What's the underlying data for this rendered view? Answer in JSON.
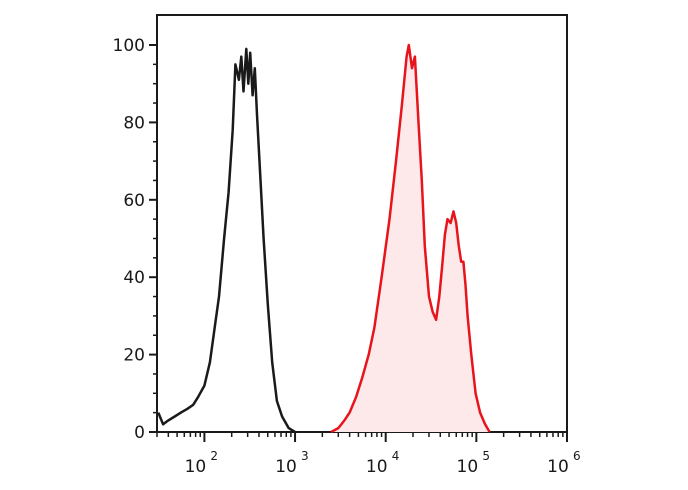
{
  "chart_data": {
    "type": "area",
    "title": "",
    "xlabel": "",
    "ylabel": "",
    "x_scale": "log",
    "xlim": [
      30,
      1000000
    ],
    "ylim": [
      0,
      100
    ],
    "grid": false,
    "y_ticks": [
      {
        "value": 0,
        "label": "0"
      },
      {
        "value": 20,
        "label": "20"
      },
      {
        "value": 40,
        "label": "40"
      },
      {
        "value": 60,
        "label": "60"
      },
      {
        "value": 80,
        "label": "80"
      },
      {
        "value": 100,
        "label": "100"
      }
    ],
    "x_ticks": [
      {
        "value": 100,
        "base": "10",
        "exp": "2"
      },
      {
        "value": 1000,
        "base": "10",
        "exp": "3"
      },
      {
        "value": 10000,
        "base": "10",
        "exp": "4"
      },
      {
        "value": 100000,
        "base": "10",
        "exp": "5"
      },
      {
        "value": 1000000,
        "base": "10",
        "exp": "6"
      }
    ],
    "series": [
      {
        "color": "#1a1a1a",
        "fill": "none",
        "points": [
          [
            31,
            5
          ],
          [
            35,
            2
          ],
          [
            40,
            3
          ],
          [
            47,
            4
          ],
          [
            55,
            5
          ],
          [
            65,
            6
          ],
          [
            75,
            7
          ],
          [
            85,
            9
          ],
          [
            100,
            12
          ],
          [
            115,
            18
          ],
          [
            130,
            27
          ],
          [
            145,
            35
          ],
          [
            165,
            50
          ],
          [
            185,
            62
          ],
          [
            205,
            78
          ],
          [
            220,
            95
          ],
          [
            240,
            91
          ],
          [
            255,
            97
          ],
          [
            270,
            88
          ],
          [
            290,
            99
          ],
          [
            305,
            90
          ],
          [
            320,
            98
          ],
          [
            340,
            87
          ],
          [
            360,
            94
          ],
          [
            380,
            82
          ],
          [
            410,
            68
          ],
          [
            450,
            50
          ],
          [
            500,
            33
          ],
          [
            560,
            18
          ],
          [
            630,
            8
          ],
          [
            720,
            4
          ],
          [
            850,
            1
          ],
          [
            1000,
            0
          ]
        ]
      },
      {
        "color": "#e8141c",
        "fill": "#fde8ea",
        "points": [
          [
            2500,
            0
          ],
          [
            3000,
            1
          ],
          [
            3500,
            3
          ],
          [
            4000,
            5
          ],
          [
            4700,
            9
          ],
          [
            5500,
            14
          ],
          [
            6500,
            20
          ],
          [
            7500,
            27
          ],
          [
            9000,
            40
          ],
          [
            11000,
            55
          ],
          [
            13000,
            70
          ],
          [
            15000,
            84
          ],
          [
            17000,
            97
          ],
          [
            18000,
            100
          ],
          [
            19500,
            94
          ],
          [
            21000,
            97
          ],
          [
            23000,
            80
          ],
          [
            25000,
            65
          ],
          [
            27000,
            48
          ],
          [
            30000,
            35
          ],
          [
            33000,
            31
          ],
          [
            36000,
            29
          ],
          [
            39000,
            35
          ],
          [
            42000,
            43
          ],
          [
            45000,
            51
          ],
          [
            48000,
            55
          ],
          [
            52000,
            54
          ],
          [
            56000,
            57
          ],
          [
            60000,
            54
          ],
          [
            64000,
            48
          ],
          [
            68000,
            44
          ],
          [
            72000,
            44
          ],
          [
            76000,
            38
          ],
          [
            80000,
            30
          ],
          [
            88000,
            20
          ],
          [
            98000,
            10
          ],
          [
            110000,
            5
          ],
          [
            125000,
            2
          ],
          [
            140000,
            0
          ]
        ]
      }
    ]
  }
}
